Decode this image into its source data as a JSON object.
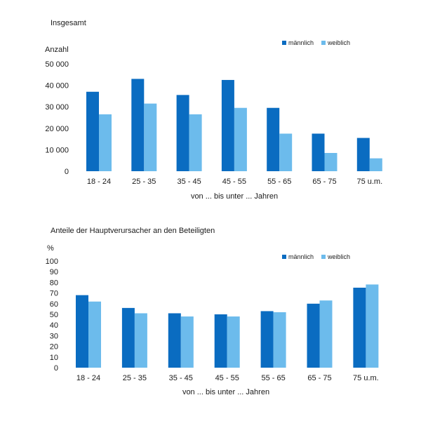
{
  "colors": {
    "maennlich": "#0a6cc1",
    "weiblich": "#6cbbec"
  },
  "chart_data": [
    {
      "type": "bar",
      "title": "Insgesamt",
      "ylabel": "Anzahl",
      "xlabel": "von ... bis unter ... Jahren",
      "categories": [
        "18 - 24",
        "25 - 35",
        "35 - 45",
        "45 - 55",
        "55 - 65",
        "65 - 75",
        "75 u.m."
      ],
      "series": [
        {
          "name": "männlich",
          "values": [
            37000,
            43000,
            35500,
            42500,
            29500,
            17500,
            15500
          ]
        },
        {
          "name": "weiblich",
          "values": [
            26500,
            31500,
            26500,
            29500,
            17500,
            8500,
            6000
          ]
        }
      ],
      "yticks": [
        "0",
        "10 000",
        "20 000",
        "30 000",
        "40 000",
        "50 000"
      ],
      "ylim": [
        0,
        50000
      ],
      "legend": "top-right",
      "grid": false
    },
    {
      "type": "bar",
      "title": "Anteile der Hauptverursacher an den Beteiligten",
      "ylabel": "%",
      "xlabel": "von ... bis unter ... Jahren",
      "categories": [
        "18 - 24",
        "25 - 35",
        "35 - 45",
        "45 - 55",
        "55 - 65",
        "65 - 75",
        "75 u.m."
      ],
      "series": [
        {
          "name": "männlich",
          "values": [
            68,
            56,
            51,
            50,
            53,
            60,
            75
          ]
        },
        {
          "name": "weiblich",
          "values": [
            62,
            51,
            48,
            48,
            52,
            63,
            78
          ]
        }
      ],
      "yticks": [
        "0",
        "10",
        "20",
        "30",
        "40",
        "50",
        "60",
        "70",
        "80",
        "90",
        "100"
      ],
      "ylim": [
        0,
        100
      ],
      "legend": "top-right",
      "grid": false
    }
  ]
}
